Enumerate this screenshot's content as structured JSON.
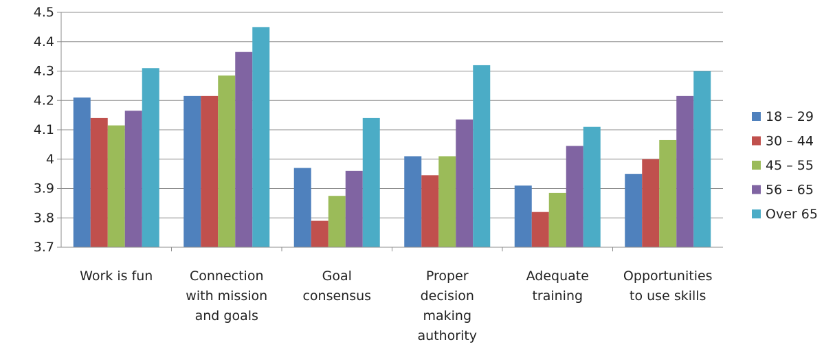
{
  "chart_data": {
    "type": "bar",
    "categories": [
      [
        "Work is fun"
      ],
      [
        "Connection",
        "with mission",
        "and goals"
      ],
      [
        "Goal",
        "consensus"
      ],
      [
        "Proper",
        "decision",
        "making",
        "authority"
      ],
      [
        "Adequate",
        "training"
      ],
      [
        "Opportunities",
        "to use skills"
      ]
    ],
    "series": [
      {
        "name": "18 – 29",
        "color": "#4F81BD",
        "values": [
          4.21,
          4.215,
          3.97,
          4.01,
          3.91,
          3.95
        ]
      },
      {
        "name": "30 – 44",
        "color": "#C0504D",
        "values": [
          4.14,
          4.215,
          3.79,
          3.945,
          3.82,
          4.0
        ]
      },
      {
        "name": "45 – 55",
        "color": "#9BBB59",
        "values": [
          4.115,
          4.285,
          3.875,
          4.01,
          3.885,
          4.065
        ]
      },
      {
        "name": "56 – 65",
        "color": "#8064A2",
        "values": [
          4.165,
          4.365,
          3.96,
          4.135,
          4.045,
          4.215
        ]
      },
      {
        "name": "Over 65",
        "color": "#4BACC6",
        "values": [
          4.31,
          4.45,
          4.14,
          4.32,
          4.11,
          4.3
        ]
      }
    ],
    "yticks": [
      "3.7",
      "3.8",
      "3.9",
      "4",
      "4.1",
      "4.2",
      "4.3",
      "4.4",
      "4.5"
    ],
    "ylim": [
      3.7,
      4.5
    ],
    "grid": true,
    "legend_position": "right"
  }
}
